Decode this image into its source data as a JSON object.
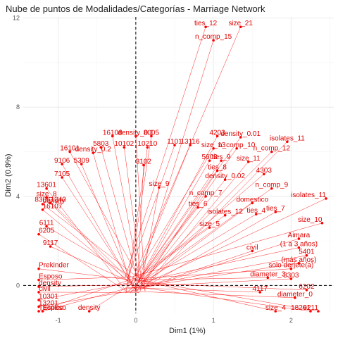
{
  "chart_data": {
    "type": "scatter",
    "title": "Nube de puntos de Modalidades/Categorías - Marriage Network",
    "xlabel": "Dim1 (1%)",
    "ylabel": "Dim2 (0.9%)",
    "xlim": [
      -1.45,
      2.55
    ],
    "ylim": [
      -1.25,
      12.05
    ],
    "x_ticks": [
      -1,
      0,
      1,
      2
    ],
    "y_ticks": [
      0,
      4,
      8,
      12
    ],
    "grid": true,
    "reference_lines": {
      "x": 0,
      "y": 0
    },
    "colors": {
      "points": "#ff0000",
      "labels": "#e00000",
      "grid": "#ebebeb"
    },
    "points": [
      {
        "label": "ties_12",
        "x": 0.9,
        "y": 11.6
      },
      {
        "label": "size_21",
        "x": 1.35,
        "y": 11.6
      },
      {
        "label": "n_comp_15",
        "x": 1.0,
        "y": 11.0
      },
      {
        "label": "16108",
        "x": -0.3,
        "y": 6.7
      },
      {
        "label": "density_0.1",
        "x": 0.0,
        "y": 6.7
      },
      {
        "label": "8005",
        "x": 0.2,
        "y": 6.7
      },
      {
        "label": "4203",
        "x": 1.05,
        "y": 6.7
      },
      {
        "label": "density_0.01",
        "x": 1.35,
        "y": 6.65
      },
      {
        "label": "isolates_11",
        "x": 1.95,
        "y": 6.45
      },
      {
        "label": "1101",
        "x": 0.5,
        "y": 6.3
      },
      {
        "label": "13116",
        "x": 0.7,
        "y": 6.3
      },
      {
        "label": "5803",
        "x": -0.45,
        "y": 6.2
      },
      {
        "label": "10102",
        "x": -0.15,
        "y": 6.2
      },
      {
        "label": "10210",
        "x": 0.15,
        "y": 6.2
      },
      {
        "label": "size_13",
        "x": 1.0,
        "y": 6.15
      },
      {
        "label": "n_comp_10",
        "x": 1.3,
        "y": 6.15
      },
      {
        "label": "n_comp_12",
        "x": 1.75,
        "y": 6.0
      },
      {
        "label": "16101",
        "x": -0.85,
        "y": 6.0
      },
      {
        "label": "density_0.2",
        "x": -0.55,
        "y": 5.95
      },
      {
        "label": "5603",
        "x": 0.95,
        "y": 5.6
      },
      {
        "label": "ties_9",
        "x": 1.1,
        "y": 5.6
      },
      {
        "label": "size_11",
        "x": 1.45,
        "y": 5.55
      },
      {
        "label": "9106",
        "x": -0.95,
        "y": 5.45
      },
      {
        "label": "5309",
        "x": -0.7,
        "y": 5.45
      },
      {
        "label": "3102",
        "x": 0.1,
        "y": 5.4
      },
      {
        "label": "ties_8",
        "x": 1.05,
        "y": 5.15
      },
      {
        "label": "4303",
        "x": 1.65,
        "y": 5.0
      },
      {
        "label": "7105",
        "x": -0.95,
        "y": 4.85
      },
      {
        "label": "density_0.02",
        "x": 1.15,
        "y": 4.75
      },
      {
        "label": "n_comp_9",
        "x": 1.75,
        "y": 4.35
      },
      {
        "label": "13601",
        "x": -1.15,
        "y": 4.35
      },
      {
        "label": "size_8",
        "x": -1.15,
        "y": 3.95
      },
      {
        "label": "isolates_11",
        "x": 2.45,
        "y": 3.9
      },
      {
        "label": "density",
        "x": -1.2,
        "y": 3.65
      },
      {
        "label": "ties_7",
        "x": 1.8,
        "y": 3.3
      },
      {
        "label": "size_10",
        "x": 2.4,
        "y": 2.8
      },
      {
        "label": "16107",
        "x": -1.2,
        "y": 3.4
      },
      {
        "label": "83061340",
        "x": -1.1,
        "y": 3.7
      },
      {
        "label": "6111",
        "x": -1.15,
        "y": 2.65
      },
      {
        "label": "6205",
        "x": -1.25,
        "y": 2.3
      },
      {
        "label": "9117",
        "x": -1.1,
        "y": 1.75
      },
      {
        "label": "Aimara",
        "x": 2.1,
        "y": 2.1
      },
      {
        "label": "(1 a 3 años)",
        "x": 2.1,
        "y": 1.7
      },
      {
        "label": "5401",
        "x": 2.2,
        "y": 1.35
      },
      {
        "label": "Prekinder",
        "x": -1.25,
        "y": 0.75
      },
      {
        "label": "(más años)",
        "x": 2.1,
        "y": 1.0
      },
      {
        "label": "solo derjete(a)",
        "x": 2.0,
        "y": 0.75
      },
      {
        "label": "3303",
        "x": 2.0,
        "y": 0.3
      },
      {
        "label": "Esposo",
        "x": -1.25,
        "y": 0.25
      },
      {
        "label": "density",
        "x": -1.25,
        "y": -0.05
      },
      {
        "label": "civil",
        "x": -1.25,
        "y": -0.3
      },
      {
        "label": "6202",
        "x": 2.2,
        "y": -0.2
      },
      {
        "label": "diameter_0",
        "x": 2.05,
        "y": -0.55
      },
      {
        "label": "10301",
        "x": -1.25,
        "y": -0.65
      },
      {
        "label": "13201",
        "x": -1.25,
        "y": -0.95
      },
      {
        "label": "9211",
        "x": 2.35,
        "y": -1.3
      },
      {
        "label": "Esposo",
        "x": -1.2,
        "y": -1.5
      },
      {
        "label": "Técnico",
        "x": -1.25,
        "y": -1.85
      },
      {
        "label": "18261",
        "x": 2.25,
        "y": -1.85
      },
      {
        "label": "density",
        "x": -0.6,
        "y": -1.85
      },
      {
        "label": "isolates_12",
        "x": 1.15,
        "y": 3.15
      },
      {
        "label": "ties_6",
        "x": 0.8,
        "y": 3.5
      },
      {
        "label": "n_comp_7",
        "x": 0.9,
        "y": 4.0
      },
      {
        "label": "size_9",
        "x": 0.3,
        "y": 4.4
      },
      {
        "label": "domestico",
        "x": 1.5,
        "y": 3.7
      },
      {
        "label": "ties_4",
        "x": 1.55,
        "y": 3.2
      },
      {
        "label": "size_5",
        "x": 0.95,
        "y": 2.6
      },
      {
        "label": "civil",
        "x": 1.5,
        "y": 1.55
      },
      {
        "label": "diameter_3",
        "x": 1.7,
        "y": 0.35
      },
      {
        "label": "4117",
        "x": 1.6,
        "y": -0.3
      },
      {
        "label": "size_4",
        "x": 1.8,
        "y": -1.3
      }
    ]
  }
}
